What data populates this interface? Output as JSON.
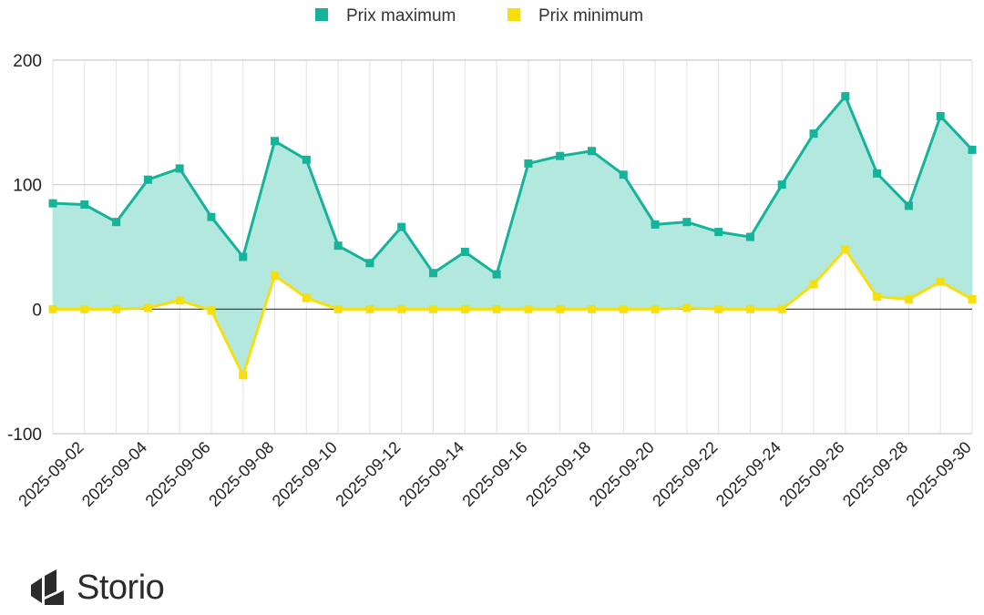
{
  "chart_data": {
    "type": "area",
    "x": [
      "2025-09-01",
      "2025-09-02",
      "2025-09-03",
      "2025-09-04",
      "2025-09-05",
      "2025-09-06",
      "2025-09-07",
      "2025-09-08",
      "2025-09-09",
      "2025-09-10",
      "2025-09-11",
      "2025-09-12",
      "2025-09-13",
      "2025-09-14",
      "2025-09-15",
      "2025-09-16",
      "2025-09-17",
      "2025-09-18",
      "2025-09-19",
      "2025-09-20",
      "2025-09-21",
      "2025-09-22",
      "2025-09-23",
      "2025-09-24",
      "2025-09-25",
      "2025-09-26",
      "2025-09-27",
      "2025-09-28",
      "2025-09-29",
      "2025-09-30"
    ],
    "x_tick_labels": [
      "2025-09-02",
      "2025-09-04",
      "2025-09-06",
      "2025-09-08",
      "2025-09-10",
      "2025-09-12",
      "2025-09-14",
      "2025-09-16",
      "2025-09-18",
      "2025-09-20",
      "2025-09-22",
      "2025-09-24",
      "2025-09-26",
      "2025-09-28",
      "2025-09-30"
    ],
    "series": [
      {
        "name": "Prix maximum",
        "color": "#14b39a",
        "values": [
          85,
          84,
          70,
          104,
          113,
          74,
          42,
          135,
          120,
          51,
          37,
          66,
          29,
          46,
          28,
          117,
          123,
          127,
          108,
          68,
          70,
          62,
          58,
          100,
          141,
          171,
          109,
          83,
          155,
          128
        ]
      },
      {
        "name": "Prix minimum",
        "color": "#f5df0e",
        "values": [
          0,
          0,
          0,
          1,
          7,
          -1,
          -53,
          27,
          9,
          0,
          0,
          0,
          0,
          0,
          0,
          0,
          0,
          0,
          0,
          0,
          1,
          0,
          0,
          0,
          20,
          48,
          10,
          8,
          22,
          8
        ]
      }
    ],
    "fill_between_color": "#b2e8de",
    "ylim": [
      -100,
      200
    ],
    "yticks": [
      -100,
      0,
      100,
      200
    ],
    "grid": true,
    "legend_position": "top"
  },
  "brand": {
    "name": "Storio"
  }
}
